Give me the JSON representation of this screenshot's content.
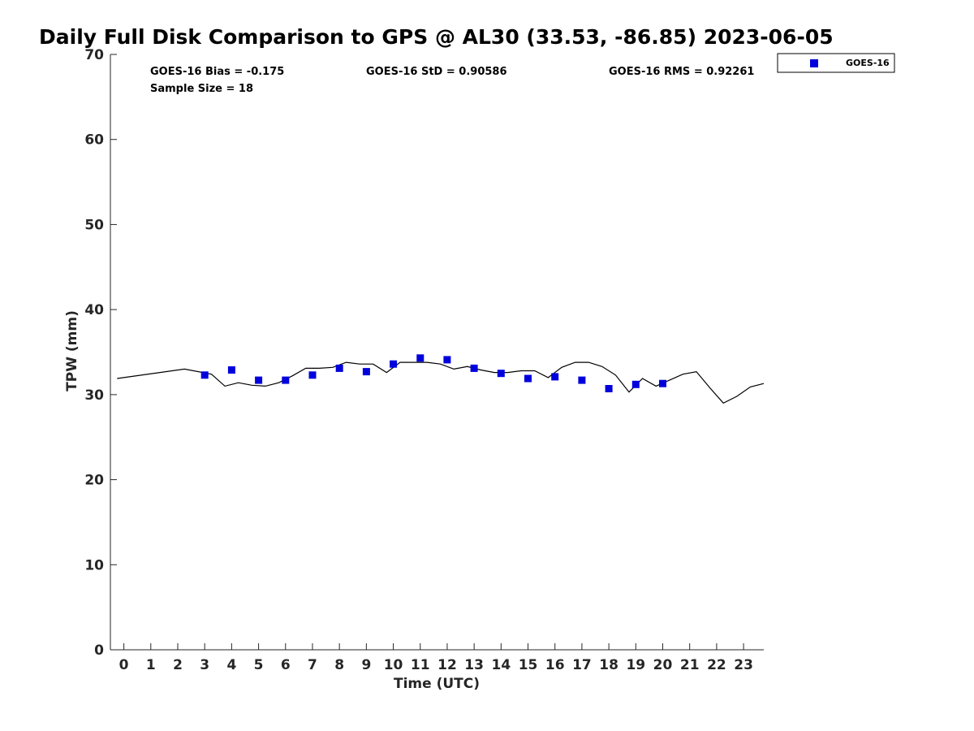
{
  "chart_data": {
    "type": "scatter",
    "title": "Daily Full Disk Comparison to GPS @ AL30 (33.53, -86.85) 2023-06-05",
    "xlabel": "Time (UTC)",
    "ylabel": "TPW (mm)",
    "xlim": [
      -0.5,
      23.75
    ],
    "ylim": [
      0,
      70
    ],
    "x_ticks": [
      0,
      1,
      2,
      3,
      4,
      5,
      6,
      7,
      8,
      9,
      10,
      11,
      12,
      13,
      14,
      15,
      16,
      17,
      18,
      19,
      20,
      21,
      22,
      23
    ],
    "y_ticks": [
      0,
      10,
      20,
      30,
      40,
      50,
      60,
      70
    ],
    "grid": false,
    "legend_position": "top-right",
    "stats": {
      "bias": "GOES-16 Bias = -0.175",
      "std": "GOES-16 StD = 0.90586",
      "rms": "GOES-16 RMS = 0.92261",
      "sample": "Sample Size = 18"
    },
    "series": [
      {
        "name": "GOES-16",
        "kind": "markers",
        "color": "#0000dd",
        "x": [
          3,
          4,
          5,
          6,
          7,
          8,
          9,
          10,
          11,
          12,
          13,
          14,
          15,
          16,
          17,
          18,
          19,
          20
        ],
        "y": [
          32.3,
          32.9,
          31.7,
          31.7,
          32.3,
          33.1,
          32.7,
          33.6,
          34.3,
          34.1,
          33.1,
          32.5,
          31.9,
          32.1,
          31.7,
          30.7,
          31.2,
          31.3
        ]
      },
      {
        "kind": "line",
        "color": "#000000",
        "x": [
          -0.25,
          2.25,
          3.25,
          3.75,
          4.25,
          4.75,
          5.25,
          5.75,
          6.25,
          6.75,
          7.25,
          7.75,
          8.25,
          8.75,
          9.25,
          9.75,
          10.25,
          10.75,
          11.25,
          11.75,
          12.25,
          12.75,
          13.25,
          13.75,
          14.25,
          14.75,
          15.25,
          15.75,
          16.25,
          16.75,
          17.25,
          17.75,
          18.25,
          18.75,
          19.25,
          19.75,
          20.25,
          20.75,
          21.25,
          21.75,
          22.25,
          22.75,
          23.25,
          23.75
        ],
        "y": [
          31.9,
          33.0,
          32.4,
          31.0,
          31.4,
          31.1,
          31.0,
          31.4,
          32.2,
          33.1,
          33.1,
          33.2,
          33.8,
          33.6,
          33.6,
          32.6,
          33.8,
          33.8,
          33.8,
          33.6,
          33.0,
          33.3,
          32.9,
          32.6,
          32.6,
          32.8,
          32.8,
          32.0,
          33.2,
          33.8,
          33.8,
          33.3,
          32.3,
          30.3,
          31.9,
          31.0,
          31.7,
          32.4,
          32.7,
          30.8,
          29.0,
          29.8,
          30.9,
          31.3
        ]
      }
    ]
  }
}
